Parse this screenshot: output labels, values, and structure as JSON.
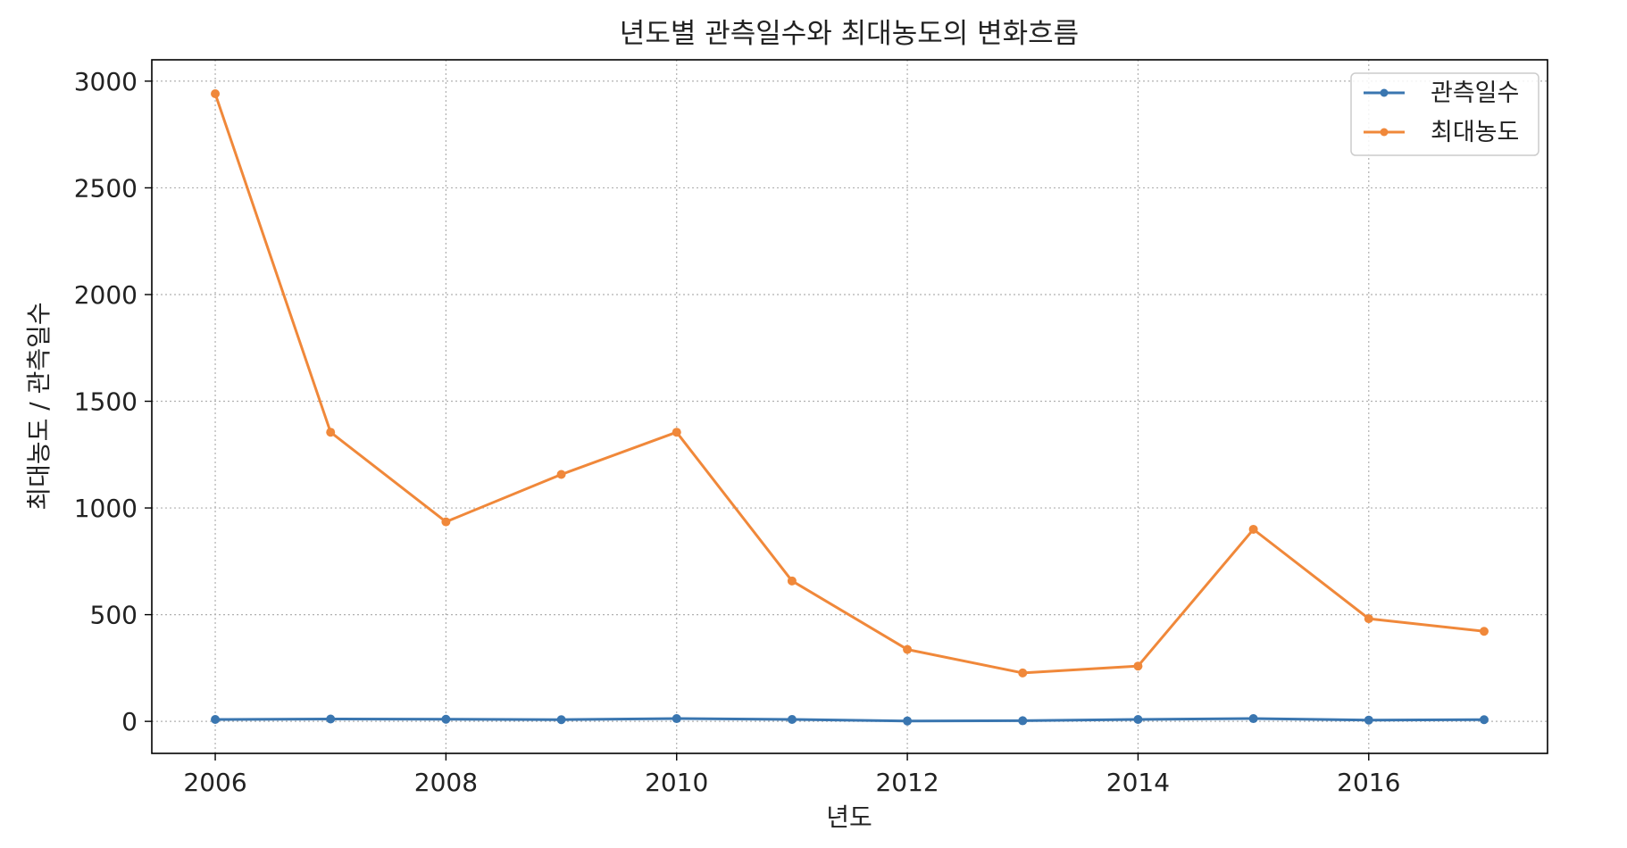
{
  "chart_data": {
    "type": "line",
    "title": "년도별 관측일수와 최대농도의 변화흐름",
    "xlabel": "년도",
    "ylabel": "최대농도 / 관측일수",
    "x": [
      2006,
      2007,
      2008,
      2009,
      2010,
      2011,
      2012,
      2013,
      2014,
      2015,
      2016,
      2017
    ],
    "xlim": [
      2005.45,
      2017.55
    ],
    "ylim": [
      -150,
      3100
    ],
    "xticks": [
      2006,
      2008,
      2010,
      2012,
      2014,
      2016
    ],
    "yticks": [
      0,
      500,
      1000,
      1500,
      2000,
      2500,
      3000
    ],
    "grid": true,
    "grid_style": "dotted",
    "legend_position": "top-right",
    "series": [
      {
        "name": "관측일수",
        "color": "#3a76b0",
        "marker": "circle",
        "values": [
          9,
          11,
          10,
          8,
          13,
          9,
          2,
          3,
          9,
          13,
          6,
          8
        ]
      },
      {
        "name": "최대농도",
        "color": "#f0883a",
        "marker": "circle",
        "values": [
          2941,
          1355,
          935,
          1157,
          1355,
          658,
          337,
          227,
          259,
          900,
          481,
          422
        ]
      }
    ]
  }
}
